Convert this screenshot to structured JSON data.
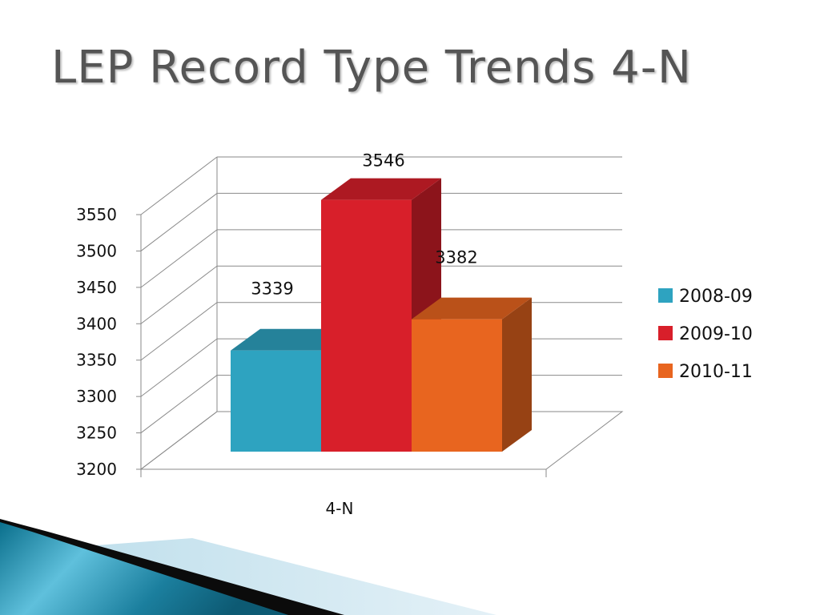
{
  "slide": {
    "title": "LEP Record Type Trends 4-N"
  },
  "chart_data": {
    "type": "bar",
    "categories": [
      "4-N"
    ],
    "series": [
      {
        "name": "2008-09",
        "values": [
          3339
        ],
        "color": "#2ea3c0"
      },
      {
        "name": "2009-10",
        "values": [
          3546
        ],
        "color": "#d81f2a"
      },
      {
        "name": "2010-11",
        "values": [
          3382
        ],
        "color": "#e8651f"
      }
    ],
    "data_labels": [
      "3339",
      "3546",
      "3382"
    ],
    "ylim": [
      3200,
      3550
    ],
    "yticks": [
      3200,
      3250,
      3300,
      3350,
      3400,
      3450,
      3500,
      3550
    ],
    "ytick_labels": [
      "3200",
      "3250",
      "3300",
      "3350",
      "3400",
      "3450",
      "3500",
      "3550"
    ],
    "grid": true,
    "three_d": true,
    "legend_position": "right"
  }
}
